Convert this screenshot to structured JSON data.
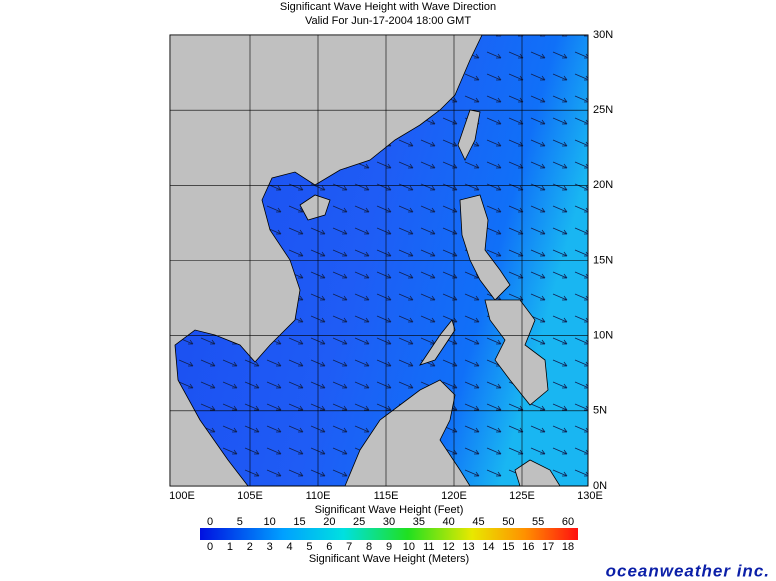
{
  "title": [
    "Significant Wave Height with Wave Direction",
    "Valid For Jun-17-2004 18:00 GMT"
  ],
  "lon_labels": [
    "100E",
    "105E",
    "110E",
    "115E",
    "120E",
    "125E",
    "130E"
  ],
  "lat_labels": [
    "0N",
    "5N",
    "10N",
    "15N",
    "20N",
    "25N",
    "30N"
  ],
  "colorbar": {
    "feet_label": "Significant Wave Height (Feet)",
    "feet_ticks": [
      0,
      5,
      10,
      15,
      20,
      25,
      30,
      35,
      40,
      45,
      50,
      55,
      60
    ],
    "meters_label": "Significant Wave Height (Meters)",
    "meters_ticks": [
      0,
      1,
      2,
      3,
      4,
      5,
      6,
      7,
      8,
      9,
      10,
      11,
      12,
      13,
      14,
      15,
      16,
      17,
      18
    ]
  },
  "brand": "oceanweather inc."
}
